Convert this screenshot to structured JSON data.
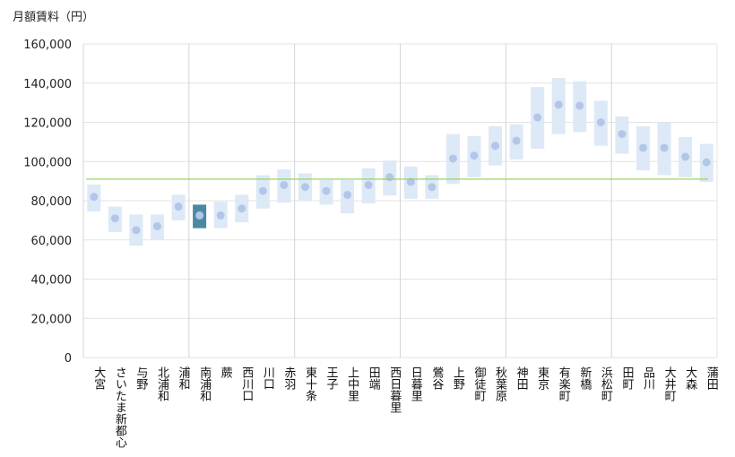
{
  "chart_data": {
    "type": "range-bar-with-points",
    "title": "月額賃料（円）",
    "ylim": [
      0,
      160000
    ],
    "yticks": [
      0,
      20000,
      40000,
      60000,
      80000,
      100000,
      120000,
      140000,
      160000
    ],
    "ytick_labels": [
      "0",
      "20,000",
      "40,000",
      "60,000",
      "80,000",
      "100,000",
      "120,000",
      "140,000",
      "160,000"
    ],
    "grid": true,
    "categories": [
      "大宮",
      "さいたま新都心",
      "与野",
      "北浦和",
      "浦和",
      "南浦和",
      "蕨",
      "西川口",
      "川口",
      "赤羽",
      "東十条",
      "王子",
      "上中里",
      "田端",
      "西日暮里",
      "日暮里",
      "鶯谷",
      "上野",
      "御徒町",
      "秋葉原",
      "神田",
      "東京",
      "有楽町",
      "新橋",
      "浜松町",
      "田町",
      "品川",
      "大井町",
      "大森",
      "蒲田"
    ],
    "low": [
      74500,
      64000,
      57000,
      60000,
      70000,
      66000,
      66000,
      69000,
      76000,
      79000,
      80000,
      78000,
      73600,
      78600,
      82700,
      81000,
      81000,
      88700,
      92000,
      98000,
      101000,
      106500,
      114000,
      115000,
      108000,
      104000,
      95500,
      93000,
      92000,
      89600
    ],
    "high": [
      88200,
      77000,
      73000,
      73000,
      83000,
      78000,
      79500,
      83000,
      93000,
      96000,
      94000,
      90500,
      90500,
      96500,
      100500,
      97400,
      93000,
      114000,
      113000,
      118000,
      119000,
      138000,
      142600,
      141000,
      131000,
      123000,
      118000,
      120000,
      112500,
      109000
    ],
    "point": [
      82000,
      71000,
      65000,
      67000,
      77000,
      72500,
      72500,
      76000,
      85000,
      88000,
      87000,
      85000,
      83000,
      88000,
      92000,
      89600,
      87000,
      101500,
      103000,
      108000,
      110600,
      122500,
      129000,
      128500,
      120000,
      114000,
      107000,
      107000,
      102400,
      99600
    ],
    "highlight_category": "南浦和",
    "reference_line": 91000,
    "group_separator_every": 5,
    "colors": {
      "range": "#dde9f6",
      "point": "#b3c6ea",
      "highlight": "#4a8aa0",
      "reference_line": "#8fd14f",
      "grid": "#e3e3e3",
      "separator": "#d4d4d4"
    }
  }
}
